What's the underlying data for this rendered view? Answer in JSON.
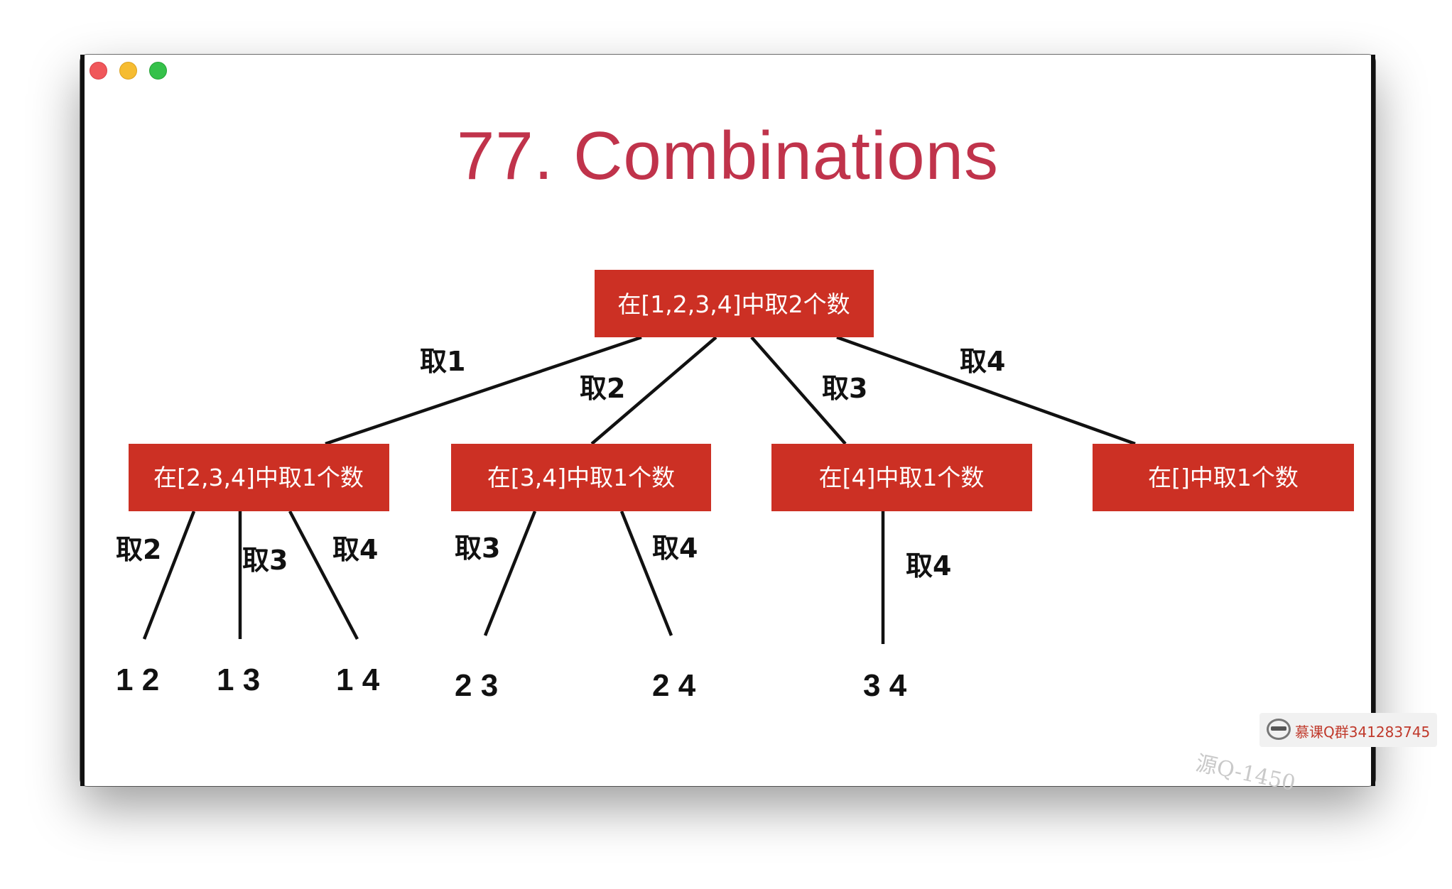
{
  "window": {
    "controls": [
      "close",
      "minimize",
      "maximize"
    ]
  },
  "slide": {
    "title": "77. Combinations"
  },
  "tree": {
    "root": "在[1,2,3,4]中取2个数",
    "root_edges": [
      "取1",
      "取2",
      "取3",
      "取4"
    ],
    "children": [
      {
        "label": "在[2,3,4]中取1个数",
        "edges": [
          "取2",
          "取3",
          "取4"
        ],
        "leaves": [
          "1 2",
          "1 3",
          "1 4"
        ]
      },
      {
        "label": "在[3,4]中取1个数",
        "edges": [
          "取3",
          "取4"
        ],
        "leaves": [
          "2 3",
          "2 4"
        ]
      },
      {
        "label": "在[4]中取1个数",
        "edges": [
          "取4"
        ],
        "leaves": [
          "3 4"
        ]
      },
      {
        "label": "在[]中取1个数",
        "edges": [],
        "leaves": []
      }
    ]
  },
  "watermark": {
    "text": "慕课Q群341283745",
    "ghost": "源Q-1450"
  },
  "colors": {
    "title": "#c0334b",
    "node_fill": "#cc3024",
    "node_text": "#ffffff",
    "lines": "#111111"
  }
}
